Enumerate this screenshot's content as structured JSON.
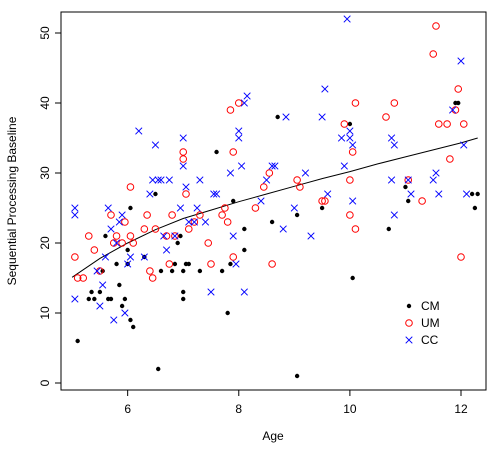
{
  "chart_data": {
    "type": "scatter",
    "xlabel": "Age",
    "ylabel": "Sequential Processing Baseline",
    "xlim": [
      4.8,
      12.45
    ],
    "ylim": [
      -1,
      53
    ],
    "x_ticks": [
      6,
      8,
      10,
      12
    ],
    "y_ticks": [
      0,
      10,
      20,
      30,
      40,
      50
    ],
    "grid": false,
    "legend_position": "bottom-right",
    "series": [
      {
        "name": "CM",
        "marker": "dot",
        "color": "#000000",
        "points": [
          [
            5.1,
            6
          ],
          [
            5.3,
            12
          ],
          [
            5.35,
            13
          ],
          [
            5.4,
            12
          ],
          [
            5.5,
            13
          ],
          [
            5.55,
            16
          ],
          [
            5.6,
            21
          ],
          [
            5.65,
            12
          ],
          [
            5.7,
            12
          ],
          [
            5.8,
            17
          ],
          [
            5.85,
            14
          ],
          [
            5.9,
            11
          ],
          [
            5.95,
            12
          ],
          [
            6.0,
            19
          ],
          [
            6.0,
            17
          ],
          [
            6.05,
            9
          ],
          [
            6.05,
            25
          ],
          [
            6.1,
            8
          ],
          [
            6.3,
            18
          ],
          [
            6.5,
            27
          ],
          [
            6.55,
            2
          ],
          [
            6.6,
            16
          ],
          [
            6.8,
            16
          ],
          [
            6.85,
            17
          ],
          [
            6.9,
            20
          ],
          [
            6.95,
            21
          ],
          [
            7.0,
            12
          ],
          [
            7.0,
            13
          ],
          [
            7.0,
            16
          ],
          [
            7.05,
            17
          ],
          [
            7.1,
            17
          ],
          [
            7.3,
            16
          ],
          [
            7.6,
            33
          ],
          [
            7.7,
            16
          ],
          [
            7.8,
            10
          ],
          [
            7.85,
            17
          ],
          [
            7.9,
            26
          ],
          [
            8.1,
            19
          ],
          [
            8.1,
            22
          ],
          [
            8.6,
            23
          ],
          [
            8.7,
            38
          ],
          [
            9.05,
            1
          ],
          [
            9.05,
            24
          ],
          [
            9.5,
            25
          ],
          [
            10.0,
            37
          ],
          [
            10.05,
            15
          ],
          [
            10.7,
            22
          ],
          [
            11.0,
            28
          ],
          [
            11.05,
            26
          ],
          [
            11.9,
            40
          ],
          [
            11.95,
            40
          ],
          [
            12.2,
            27
          ],
          [
            12.25,
            25
          ],
          [
            12.3,
            27
          ]
        ]
      },
      {
        "name": "UM",
        "marker": "circle",
        "color": "#ff0000",
        "points": [
          [
            5.05,
            18
          ],
          [
            5.1,
            15
          ],
          [
            5.2,
            15
          ],
          [
            5.3,
            21
          ],
          [
            5.4,
            19
          ],
          [
            5.5,
            16
          ],
          [
            5.7,
            24
          ],
          [
            5.75,
            20
          ],
          [
            5.8,
            21
          ],
          [
            5.9,
            20
          ],
          [
            5.95,
            23
          ],
          [
            6.05,
            21
          ],
          [
            6.05,
            28
          ],
          [
            6.1,
            20
          ],
          [
            6.3,
            22
          ],
          [
            6.35,
            24
          ],
          [
            6.4,
            16
          ],
          [
            6.45,
            15
          ],
          [
            6.5,
            22
          ],
          [
            6.7,
            21
          ],
          [
            6.75,
            17
          ],
          [
            6.8,
            24
          ],
          [
            6.85,
            21
          ],
          [
            7.0,
            33
          ],
          [
            7.0,
            32
          ],
          [
            7.05,
            27
          ],
          [
            7.1,
            22
          ],
          [
            7.2,
            23
          ],
          [
            7.3,
            24
          ],
          [
            7.45,
            20
          ],
          [
            7.5,
            17
          ],
          [
            7.7,
            24
          ],
          [
            7.75,
            25
          ],
          [
            7.8,
            23
          ],
          [
            7.85,
            39
          ],
          [
            7.9,
            33
          ],
          [
            7.9,
            18
          ],
          [
            8.0,
            40
          ],
          [
            8.3,
            25
          ],
          [
            8.45,
            28
          ],
          [
            8.55,
            30
          ],
          [
            8.6,
            17
          ],
          [
            9.05,
            29
          ],
          [
            9.1,
            28
          ],
          [
            9.5,
            26
          ],
          [
            9.55,
            26
          ],
          [
            9.9,
            37
          ],
          [
            10.0,
            24
          ],
          [
            10.0,
            29
          ],
          [
            10.05,
            33
          ],
          [
            10.1,
            22
          ],
          [
            10.1,
            40
          ],
          [
            10.65,
            38
          ],
          [
            10.8,
            40
          ],
          [
            11.05,
            29
          ],
          [
            11.3,
            26
          ],
          [
            11.5,
            47
          ],
          [
            11.55,
            51
          ],
          [
            11.6,
            37
          ],
          [
            11.75,
            37
          ],
          [
            11.8,
            32
          ],
          [
            11.9,
            39
          ],
          [
            11.95,
            42
          ],
          [
            12.0,
            18
          ],
          [
            12.05,
            37
          ]
        ]
      },
      {
        "name": "CC",
        "marker": "x",
        "color": "#0000ff",
        "points": [
          [
            5.05,
            25
          ],
          [
            5.05,
            24
          ],
          [
            5.05,
            12
          ],
          [
            5.45,
            16
          ],
          [
            5.5,
            11
          ],
          [
            5.55,
            14
          ],
          [
            5.6,
            18
          ],
          [
            5.65,
            25
          ],
          [
            5.7,
            22
          ],
          [
            5.75,
            9
          ],
          [
            5.8,
            20
          ],
          [
            5.85,
            23
          ],
          [
            5.9,
            24
          ],
          [
            5.95,
            10
          ],
          [
            6.0,
            17
          ],
          [
            6.05,
            18
          ],
          [
            6.2,
            36
          ],
          [
            6.3,
            18
          ],
          [
            6.4,
            27
          ],
          [
            6.45,
            29
          ],
          [
            6.5,
            34
          ],
          [
            6.55,
            29
          ],
          [
            6.6,
            29
          ],
          [
            6.65,
            21
          ],
          [
            6.7,
            19
          ],
          [
            6.75,
            29
          ],
          [
            6.85,
            21
          ],
          [
            6.95,
            25
          ],
          [
            7.0,
            31
          ],
          [
            7.0,
            35
          ],
          [
            7.05,
            28
          ],
          [
            7.1,
            23
          ],
          [
            7.2,
            23
          ],
          [
            7.25,
            25
          ],
          [
            7.3,
            29
          ],
          [
            7.4,
            23
          ],
          [
            7.5,
            13
          ],
          [
            7.55,
            27
          ],
          [
            7.6,
            27
          ],
          [
            7.85,
            30
          ],
          [
            7.9,
            21
          ],
          [
            7.95,
            17
          ],
          [
            8.0,
            36
          ],
          [
            8.0,
            35
          ],
          [
            8.05,
            31
          ],
          [
            8.1,
            13
          ],
          [
            8.1,
            40
          ],
          [
            8.15,
            41
          ],
          [
            8.4,
            26
          ],
          [
            8.5,
            29
          ],
          [
            8.6,
            31
          ],
          [
            8.65,
            31
          ],
          [
            8.8,
            22
          ],
          [
            8.85,
            38
          ],
          [
            9.0,
            25
          ],
          [
            9.2,
            30
          ],
          [
            9.3,
            21
          ],
          [
            9.5,
            38
          ],
          [
            9.55,
            42
          ],
          [
            9.6,
            27
          ],
          [
            9.85,
            35
          ],
          [
            9.9,
            31
          ],
          [
            9.95,
            52
          ],
          [
            10.0,
            36
          ],
          [
            10.0,
            35
          ],
          [
            10.05,
            34
          ],
          [
            10.05,
            26
          ],
          [
            10.75,
            29
          ],
          [
            10.75,
            35
          ],
          [
            10.8,
            34
          ],
          [
            10.8,
            24
          ],
          [
            11.05,
            29
          ],
          [
            11.1,
            27
          ],
          [
            11.5,
            29
          ],
          [
            11.55,
            30
          ],
          [
            11.6,
            27
          ],
          [
            11.85,
            39
          ],
          [
            12.0,
            46
          ],
          [
            12.05,
            34
          ],
          [
            12.1,
            27
          ]
        ]
      }
    ],
    "trend_line": [
      [
        5.0,
        15.1
      ],
      [
        5.5,
        17.8
      ],
      [
        6.0,
        20.0
      ],
      [
        6.5,
        21.9
      ],
      [
        7.0,
        23.5
      ],
      [
        7.5,
        24.7
      ],
      [
        8.0,
        25.9
      ],
      [
        8.5,
        27.0
      ],
      [
        9.0,
        28.1
      ],
      [
        9.5,
        29.2
      ],
      [
        10.0,
        30.2
      ],
      [
        10.5,
        31.3
      ],
      [
        11.0,
        32.3
      ],
      [
        11.5,
        33.3
      ],
      [
        12.0,
        34.3
      ],
      [
        12.3,
        35.0
      ]
    ]
  }
}
